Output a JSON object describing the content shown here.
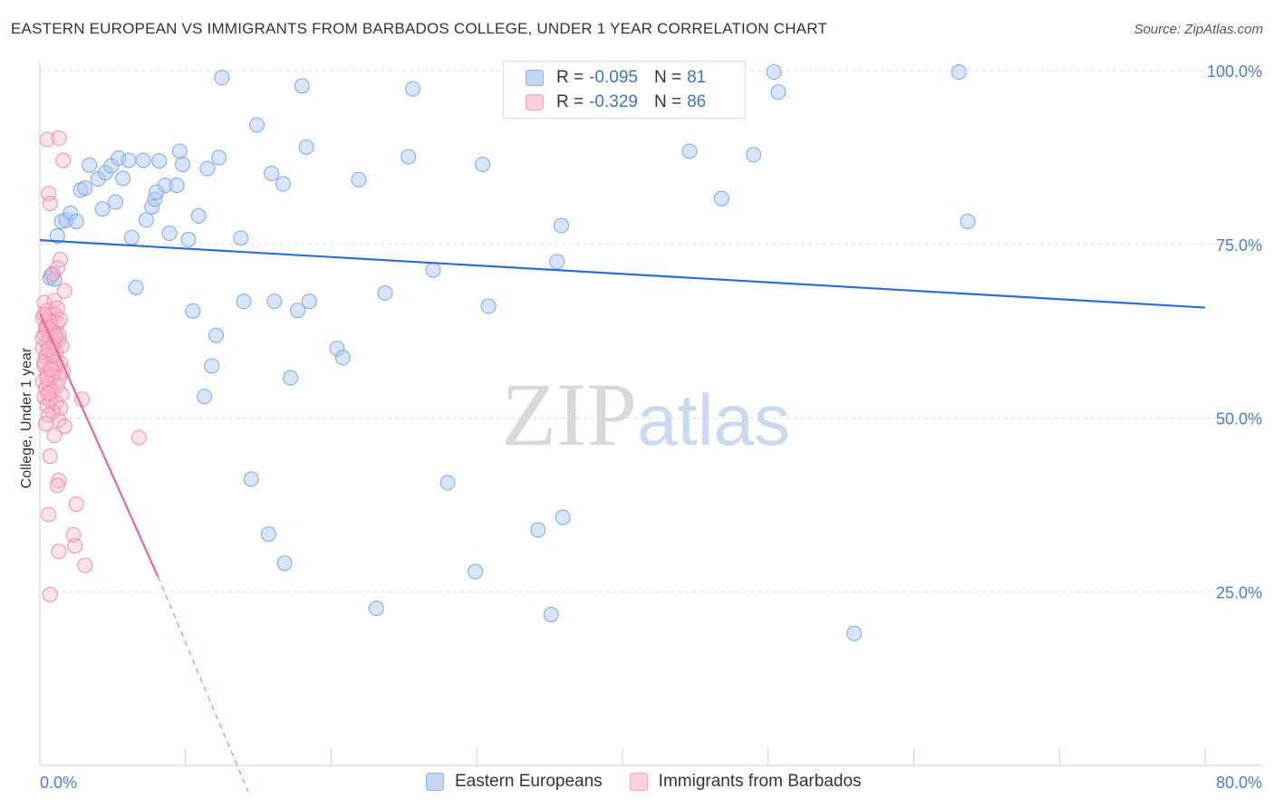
{
  "header": {
    "title": "EASTERN EUROPEAN VS IMMIGRANTS FROM BARBADOS COLLEGE, UNDER 1 YEAR CORRELATION CHART",
    "source": "Source: ZipAtlas.com"
  },
  "watermark": {
    "zip": "ZIP",
    "atlas": "atlas"
  },
  "legend": {
    "rows": [
      {
        "r_label": "R =",
        "r_value": "-0.095",
        "n_label": "N =",
        "n_value": "81",
        "color": "#a9c6ef"
      },
      {
        "r_label": "R =",
        "r_value": "-0.329",
        "n_label": "N =",
        "n_value": "86",
        "color": "#f7b6c8"
      }
    ]
  },
  "bottom_legend": {
    "items": [
      {
        "label": "Eastern Europeans",
        "color": "#a9c6ef"
      },
      {
        "label": "Immigrants from Barbados",
        "color": "#f7b6c8"
      }
    ]
  },
  "chart_data": {
    "type": "scatter",
    "title": "EASTERN EUROPEAN VS IMMIGRANTS FROM BARBADOS COLLEGE, UNDER 1 YEAR CORRELATION CHART",
    "xlabel": "",
    "ylabel": "College, Under 1 year",
    "xlim": [
      0,
      80
    ],
    "ylim": [
      0,
      100
    ],
    "x_tick_labels": [
      "0.0%",
      "80.0%"
    ],
    "y_tick_labels": [
      "25.0%",
      "50.0%",
      "75.0%",
      "100.0%"
    ],
    "y_tick_values": [
      25,
      50,
      75,
      100
    ],
    "grid": true,
    "legend_position": "top-center",
    "series": [
      {
        "name": "Eastern Europeans",
        "color": "#6f9fe0",
        "trend": {
          "x": [
            0,
            80
          ],
          "y": [
            75.6,
            65.9
          ],
          "dashed_from": null
        },
        "points": [
          [
            0.7,
            70.2
          ],
          [
            0.9,
            70.8
          ],
          [
            1.2,
            76.2
          ],
          [
            1.5,
            78.3
          ],
          [
            1.8,
            78.5
          ],
          [
            2.1,
            79.5
          ],
          [
            2.5,
            78.3
          ],
          [
            2.8,
            82.8
          ],
          [
            3.1,
            83.1
          ],
          [
            3.4,
            86.4
          ],
          [
            4.0,
            84.4
          ],
          [
            4.3,
            80.1
          ],
          [
            4.5,
            85.3
          ],
          [
            4.9,
            86.3
          ],
          [
            5.2,
            81.1
          ],
          [
            5.4,
            87.4
          ],
          [
            5.7,
            84.5
          ],
          [
            6.1,
            87.1
          ],
          [
            6.3,
            76.0
          ],
          [
            6.6,
            68.8
          ],
          [
            7.1,
            87.1
          ],
          [
            7.3,
            78.5
          ],
          [
            7.7,
            80.4
          ],
          [
            7.9,
            81.5
          ],
          [
            8.2,
            87.0
          ],
          [
            8.6,
            83.5
          ],
          [
            8.9,
            76.6
          ],
          [
            9.4,
            83.5
          ],
          [
            9.6,
            88.4
          ],
          [
            9.8,
            86.5
          ],
          [
            10.2,
            75.7
          ],
          [
            10.5,
            65.4
          ],
          [
            10.9,
            79.1
          ],
          [
            11.5,
            85.9
          ],
          [
            12.3,
            87.5
          ],
          [
            12.1,
            61.9
          ],
          [
            11.8,
            57.5
          ],
          [
            11.3,
            53.1
          ],
          [
            13.8,
            75.9
          ],
          [
            14.0,
            66.8
          ],
          [
            14.9,
            92.2
          ],
          [
            15.9,
            85.2
          ],
          [
            16.1,
            66.8
          ],
          [
            16.7,
            83.7
          ],
          [
            17.2,
            55.8
          ],
          [
            17.7,
            65.5
          ],
          [
            18.0,
            97.8
          ],
          [
            18.3,
            89.0
          ],
          [
            18.5,
            66.8
          ],
          [
            20.4,
            60.0
          ],
          [
            20.8,
            58.7
          ],
          [
            21.9,
            84.3
          ],
          [
            14.5,
            41.2
          ],
          [
            15.7,
            33.3
          ],
          [
            16.8,
            29.1
          ],
          [
            23.1,
            22.6
          ],
          [
            23.7,
            68.0
          ],
          [
            25.3,
            87.6
          ],
          [
            25.6,
            97.4
          ],
          [
            27.0,
            71.3
          ],
          [
            28.0,
            40.7
          ],
          [
            29.9,
            27.9
          ],
          [
            30.4,
            86.5
          ],
          [
            30.8,
            66.1
          ],
          [
            34.2,
            33.9
          ],
          [
            35.1,
            21.7
          ],
          [
            35.5,
            72.5
          ],
          [
            35.8,
            77.7
          ],
          [
            35.9,
            35.7
          ],
          [
            39.4,
            99.9
          ],
          [
            44.6,
            88.4
          ],
          [
            46.8,
            81.6
          ],
          [
            49.0,
            87.9
          ],
          [
            50.4,
            99.8
          ],
          [
            50.7,
            96.9
          ],
          [
            55.9,
            19.0
          ],
          [
            63.1,
            99.8
          ],
          [
            63.7,
            78.3
          ],
          [
            1.0,
            70.0
          ],
          [
            8.0,
            82.5
          ],
          [
            12.5,
            99.0
          ]
        ]
      },
      {
        "name": "Immigrants from Barbados",
        "color": "#ee7fa4",
        "trend": {
          "x": [
            0,
            8.1,
            14.3
          ],
          "y": [
            65.1,
            27.2,
            -3.8
          ],
          "dashed_from": 8.1
        },
        "points": [
          [
            0.5,
            90.1
          ],
          [
            1.3,
            90.3
          ],
          [
            1.6,
            87.1
          ],
          [
            0.6,
            82.3
          ],
          [
            0.7,
            80.9
          ],
          [
            1.4,
            72.8
          ],
          [
            1.2,
            71.6
          ],
          [
            0.8,
            70.6
          ],
          [
            1.7,
            68.3
          ],
          [
            0.3,
            66.6
          ],
          [
            0.5,
            65.5
          ],
          [
            0.9,
            65.0
          ],
          [
            1.1,
            64.8
          ],
          [
            0.2,
            64.4
          ],
          [
            0.6,
            64.0
          ],
          [
            1.2,
            63.6
          ],
          [
            0.4,
            63.0
          ],
          [
            0.8,
            62.6
          ],
          [
            1.0,
            62.3
          ],
          [
            0.3,
            62.0
          ],
          [
            0.7,
            61.7
          ],
          [
            1.3,
            61.2
          ],
          [
            0.5,
            60.8
          ],
          [
            0.9,
            60.5
          ],
          [
            1.5,
            60.4
          ],
          [
            0.2,
            60.1
          ],
          [
            0.6,
            59.7
          ],
          [
            1.1,
            59.3
          ],
          [
            0.4,
            58.8
          ],
          [
            0.8,
            58.4
          ],
          [
            1.4,
            57.9
          ],
          [
            0.3,
            57.5
          ],
          [
            0.7,
            57.2
          ],
          [
            1.0,
            56.9
          ],
          [
            1.6,
            56.7
          ],
          [
            0.5,
            56.4
          ],
          [
            0.9,
            56.0
          ],
          [
            1.3,
            55.7
          ],
          [
            0.2,
            55.3
          ],
          [
            0.6,
            55.0
          ],
          [
            1.2,
            54.6
          ],
          [
            0.4,
            54.2
          ],
          [
            0.8,
            53.8
          ],
          [
            1.5,
            53.4
          ],
          [
            0.3,
            53.0
          ],
          [
            0.7,
            52.6
          ],
          [
            1.1,
            52.2
          ],
          [
            2.9,
            52.7
          ],
          [
            0.5,
            51.8
          ],
          [
            1.4,
            51.4
          ],
          [
            0.9,
            50.9
          ],
          [
            0.6,
            50.4
          ],
          [
            1.3,
            49.7
          ],
          [
            0.4,
            49.2
          ],
          [
            1.7,
            48.8
          ],
          [
            6.8,
            47.2
          ],
          [
            1.0,
            47.5
          ],
          [
            0.7,
            44.5
          ],
          [
            1.3,
            41.0
          ],
          [
            1.2,
            40.3
          ],
          [
            2.5,
            37.6
          ],
          [
            0.6,
            36.1
          ],
          [
            2.3,
            33.2
          ],
          [
            2.4,
            31.6
          ],
          [
            1.3,
            30.8
          ],
          [
            3.1,
            28.8
          ],
          [
            0.7,
            24.6
          ],
          [
            0.5,
            63.2
          ],
          [
            1.0,
            66.9
          ],
          [
            0.3,
            58.0
          ],
          [
            0.8,
            61.0
          ],
          [
            1.1,
            57.8
          ],
          [
            0.4,
            62.8
          ],
          [
            0.6,
            53.5
          ],
          [
            1.2,
            65.8
          ],
          [
            0.9,
            59.0
          ],
          [
            0.2,
            61.5
          ],
          [
            1.4,
            64.2
          ],
          [
            0.5,
            55.8
          ],
          [
            0.7,
            63.8
          ],
          [
            1.0,
            60.9
          ],
          [
            0.3,
            64.9
          ],
          [
            0.8,
            57.0
          ],
          [
            1.3,
            62.0
          ],
          [
            0.6,
            59.9
          ],
          [
            1.1,
            61.8
          ]
        ]
      }
    ]
  }
}
